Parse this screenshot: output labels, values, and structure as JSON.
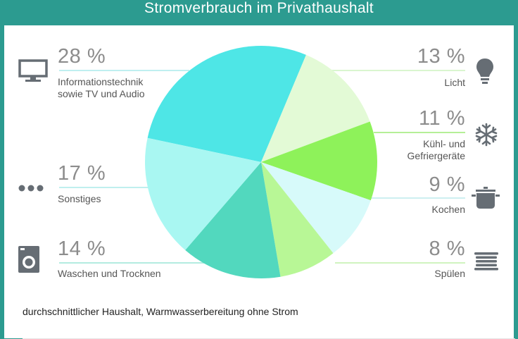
{
  "title": "Stromverbrauch im Privathaushalt",
  "footnote": "durchschnittlicher Haushalt, Warmwasserbereitung ohne Strom",
  "chart_data": {
    "type": "pie",
    "title": "Stromverbrauch im Privathaushalt",
    "slices": [
      {
        "label": "Informationstechnik sowie TV und Audio",
        "value": 28,
        "display": "28 %",
        "color": "#4ee6e6",
        "icon": "monitor-icon"
      },
      {
        "label": "Licht",
        "value": 13,
        "display": "13 %",
        "color": "#e3fad6",
        "icon": "lightbulb-icon"
      },
      {
        "label": "Kühl- und Gefriergeräte",
        "value": 11,
        "display": "11 %",
        "color": "#8ef25a",
        "icon": "snowflake-icon"
      },
      {
        "label": "Kochen",
        "value": 9,
        "display": "9 %",
        "color": "#d7fafa",
        "icon": "cooking-pot-icon"
      },
      {
        "label": "Spülen",
        "value": 8,
        "display": "8 %",
        "color": "#b8f796",
        "icon": "dish-stack-icon"
      },
      {
        "label": "Waschen und Trocknen",
        "value": 14,
        "display": "14 %",
        "color": "#52d8be",
        "icon": "washing-machine-icon"
      },
      {
        "label": "Sonstiges",
        "value": 17,
        "display": "17 %",
        "color": "#a9f7f2",
        "icon": "more-dots-icon"
      }
    ]
  },
  "labels": {
    "it": {
      "pct": "28 %",
      "line1": "Informationstechnik",
      "line2": "sowie TV und Audio"
    },
    "licht": {
      "pct": "13 %",
      "line1": "Licht"
    },
    "kuehl": {
      "pct": "11 %",
      "line1": "Kühl- und",
      "line2": "Gefriergeräte"
    },
    "kochen": {
      "pct": "9 %",
      "line1": "Kochen"
    },
    "spuelen": {
      "pct": "8 %",
      "line1": "Spülen"
    },
    "waschen": {
      "pct": "14 %",
      "line1": "Waschen und Trocknen"
    },
    "sonstiges": {
      "pct": "17 %",
      "line1": "Sonstiges"
    }
  }
}
